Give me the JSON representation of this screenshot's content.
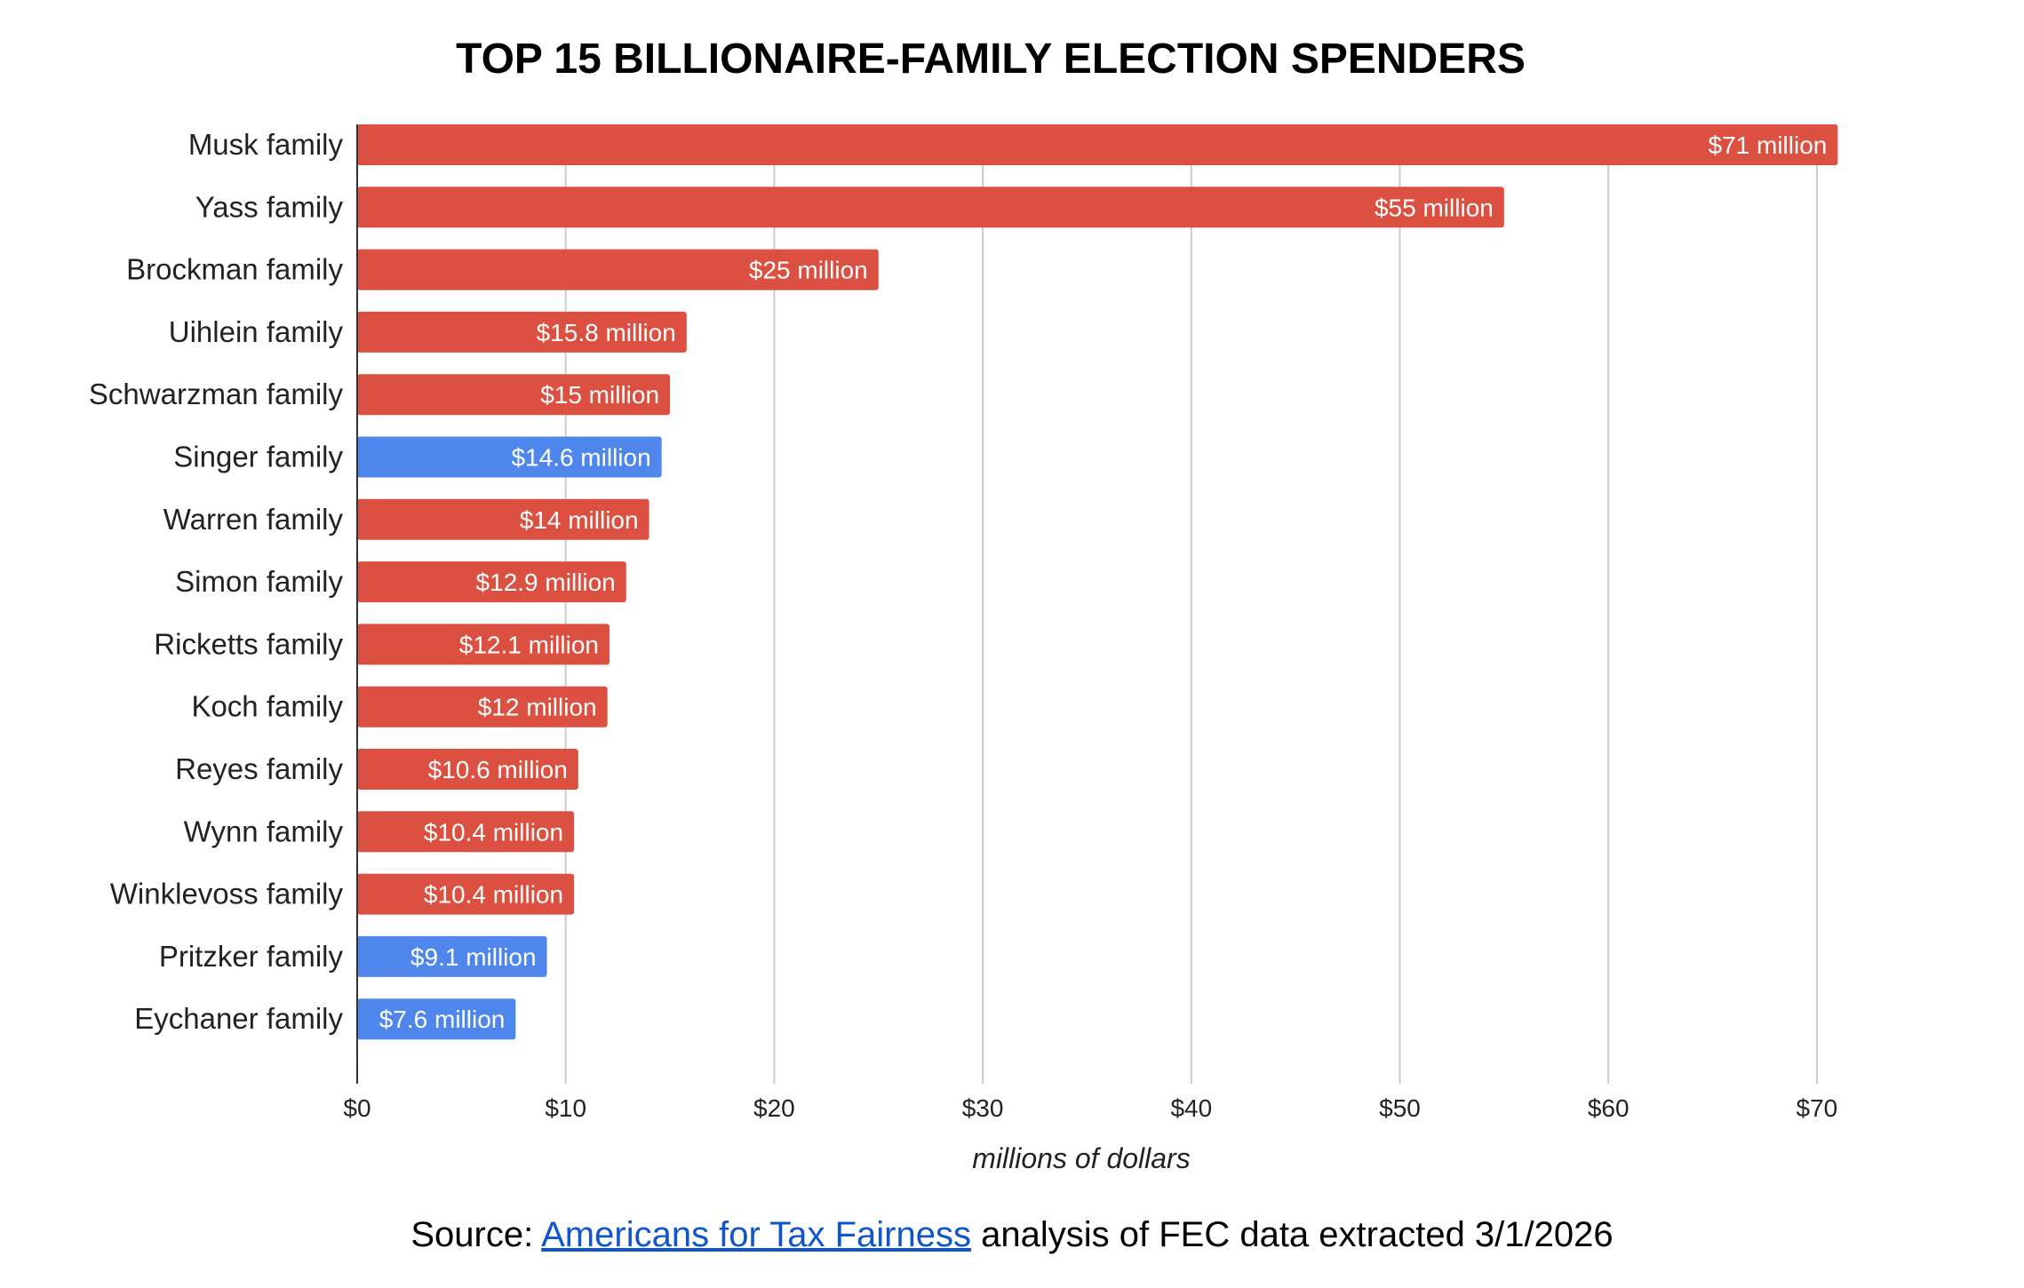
{
  "chart_data": {
    "type": "bar",
    "orientation": "horizontal",
    "title": "TOP 15 BILLIONAIRE-FAMILY ELECTION SPENDERS",
    "xlabel": "millions of dollars",
    "ylabel": "",
    "xlim": [
      0,
      70
    ],
    "xticks": [
      0,
      10,
      20,
      30,
      40,
      50,
      60,
      70
    ],
    "xtick_labels": [
      "$0",
      "$10",
      "$20",
      "$30",
      "$40",
      "$50",
      "$60",
      "$70"
    ],
    "grid": "vertical",
    "colors": {
      "red": "#db5040",
      "blue": "#4f86ec"
    },
    "categories": [
      "Musk family",
      "Yass family",
      "Brockman family",
      "Uihlein family",
      "Schwarzman family",
      "Singer family",
      "Warren family",
      "Simon family",
      "Ricketts family",
      "Koch family",
      "Reyes family",
      "Wynn family",
      "Winklevoss family",
      "Pritzker family",
      "Eychaner family"
    ],
    "values": [
      71,
      55,
      25,
      15.8,
      15,
      14.6,
      14,
      12.9,
      12.1,
      12,
      10.6,
      10.4,
      10.4,
      9.1,
      7.6
    ],
    "bar_colors": [
      "red",
      "red",
      "red",
      "red",
      "red",
      "blue",
      "red",
      "red",
      "red",
      "red",
      "red",
      "red",
      "red",
      "blue",
      "blue"
    ],
    "data_labels": [
      "$71 million",
      "$55 million",
      "$25 million",
      "$15.8 million",
      "$15 million",
      "$14.6 million",
      "$14 million",
      "$12.9 million",
      "$12.1 million",
      "$12 million",
      "$10.6 million",
      "$10.4 million",
      "$10.4 million",
      "$9.1 million",
      "$7.6 million"
    ]
  },
  "source": {
    "prefix": "Source: ",
    "link_text": "Americans for Tax Fairness",
    "suffix": " analysis of FEC data extracted 3/1/2026"
  }
}
